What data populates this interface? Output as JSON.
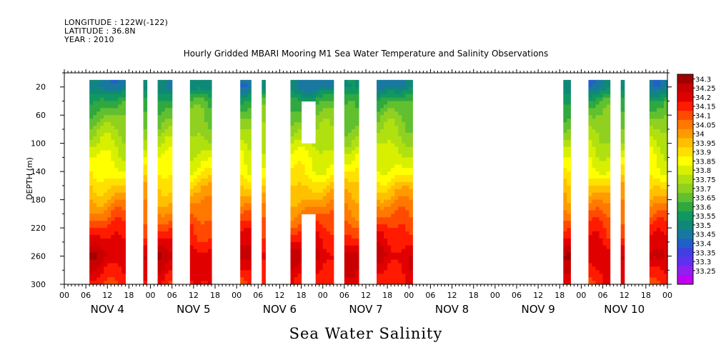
{
  "header": {
    "longitude": "LONGITUDE : 122W(-122)",
    "latitude": "LATITUDE : 36.8N",
    "year": "YEAR : 2010"
  },
  "chart_data": {
    "type": "heatmap",
    "title": "Hourly Gridded MBARI Mooring M1 Sea Water Temperature and Salinity Observations",
    "xlabel": "Sea Water Salinity",
    "ylabel": "DEPTH (m)",
    "x_range_hours": [
      0,
      168
    ],
    "x_tick_hour_labels": [
      "00",
      "06",
      "12",
      "18"
    ],
    "x_day_labels": [
      "NOV 4",
      "NOV 5",
      "NOV 6",
      "NOV 7",
      "NOV 8",
      "NOV 9",
      "NOV 10"
    ],
    "ylim": [
      300,
      0
    ],
    "y_ticks": [
      20,
      60,
      100,
      140,
      180,
      220,
      260,
      300
    ],
    "depth_levels": [
      20,
      40,
      60,
      80,
      100,
      120,
      140,
      160,
      180,
      200,
      220,
      240,
      260,
      280,
      300
    ],
    "profile": [
      33.5,
      33.63,
      33.68,
      33.73,
      33.78,
      33.84,
      33.88,
      33.96,
      34.02,
      34.08,
      34.14,
      34.2,
      34.26,
      34.22,
      34.18
    ],
    "data_segments_hours": [
      [
        7,
        17
      ],
      [
        22,
        23
      ],
      [
        26,
        30
      ],
      [
        35,
        41
      ],
      [
        49,
        52
      ],
      [
        55,
        56
      ],
      [
        63,
        75
      ],
      [
        78,
        82
      ],
      [
        87,
        97
      ],
      [
        139,
        141
      ],
      [
        146,
        152
      ],
      [
        155,
        156
      ],
      [
        163,
        169
      ]
    ],
    "gaps": [
      {
        "x": [
          66,
          70
        ],
        "depth": [
          40,
          100
        ]
      },
      {
        "x": [
          66,
          70
        ],
        "depth": [
          200,
          300
        ]
      }
    ],
    "colorbar": {
      "labels": [
        "34.3",
        "34.25",
        "34.2",
        "34.15",
        "34.1",
        "34.05",
        "34",
        "33.95",
        "33.9",
        "33.85",
        "33.8",
        "33.75",
        "33.7",
        "33.65",
        "33.6",
        "33.55",
        "33.5",
        "33.45",
        "33.4",
        "33.35",
        "33.3",
        "33.25"
      ],
      "colors": [
        "#a00000",
        "#c80000",
        "#e00000",
        "#ff1a00",
        "#ff4a00",
        "#ff7800",
        "#ff9a00",
        "#ffc000",
        "#ffe000",
        "#ffff00",
        "#d8f000",
        "#b0e010",
        "#90d020",
        "#60c030",
        "#30a840",
        "#109860",
        "#108878",
        "#1878a0",
        "#2060c8",
        "#4040e0",
        "#6030f0",
        "#9020f0",
        "#c000f0"
      ]
    },
    "grid": false,
    "legend_position": "right"
  }
}
